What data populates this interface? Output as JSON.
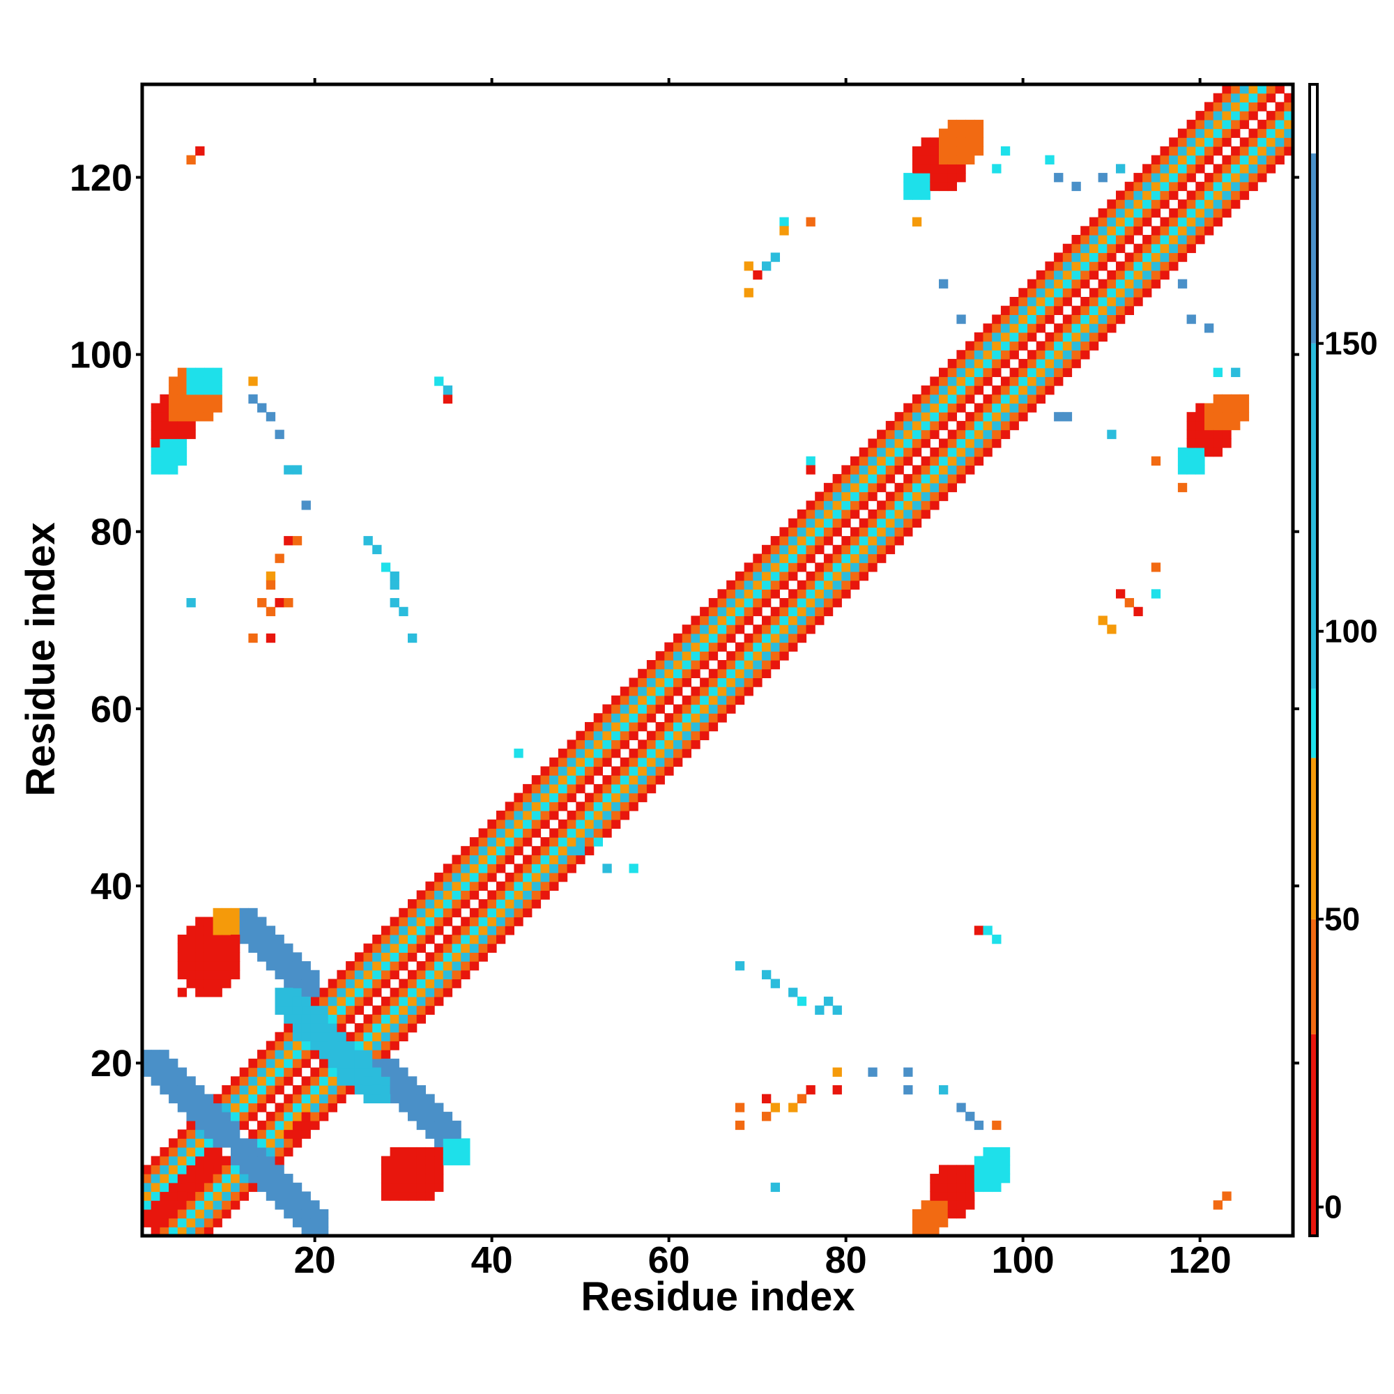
{
  "chart_data": {
    "type": "heatmap",
    "xlabel": "Residue index",
    "ylabel": "Residue index",
    "xlim": [
      0.5,
      130.5
    ],
    "ylim": [
      0.5,
      130.5
    ],
    "xticks": [
      20,
      40,
      60,
      80,
      100,
      120
    ],
    "yticks": [
      20,
      40,
      60,
      80,
      100,
      120
    ],
    "grid": false,
    "colorbar": {
      "range": [
        -5,
        195
      ],
      "ticks": [
        0,
        50,
        100,
        150
      ],
      "bands": [
        {
          "from": -5,
          "to": 30,
          "color": "#e8160d"
        },
        {
          "from": 30,
          "to": 50,
          "color": "#f26a12"
        },
        {
          "from": 50,
          "to": 78,
          "color": "#f59a0a"
        },
        {
          "from": 78,
          "to": 90,
          "color": "#1ee0ea"
        },
        {
          "from": 90,
          "to": 150,
          "color": "#2bbcdc"
        },
        {
          "from": 150,
          "to": 183,
          "color": "#4a90c8"
        },
        {
          "from": 183,
          "to": 195,
          "color": "#ffffff"
        }
      ]
    },
    "color_classes": {
      "R": {
        "value": 10,
        "color": "#e8160d"
      },
      "O": {
        "value": 40,
        "color": "#f26a12"
      },
      "Y": {
        "value": 65,
        "color": "#f59a0a"
      },
      "C": {
        "value": 85,
        "color": "#1ee0ea"
      },
      "T": {
        "value": 120,
        "color": "#2bbcdc"
      },
      "B": {
        "value": 165,
        "color": "#4a90c8"
      }
    },
    "diagonal_pattern": {
      "from": 1,
      "to": 130,
      "offsets": {
        "0": "",
        "1": "R",
        "2": "O",
        "3": "C",
        "4": "Y",
        "5": "T",
        "6": "O",
        "7": "R"
      }
    },
    "blocks": [
      {
        "x": [
          2,
          6
        ],
        "y": [
          90,
          95
        ],
        "band": 3,
        "class": "R"
      },
      {
        "x": [
          4,
          9
        ],
        "y": [
          93,
          98
        ],
        "band": 3,
        "class": "O"
      },
      {
        "x": [
          2,
          5
        ],
        "y": [
          87,
          90
        ],
        "band": 1,
        "class": "C"
      },
      {
        "x": [
          6,
          9
        ],
        "y": [
          96,
          98
        ],
        "band": 1,
        "class": "C"
      },
      {
        "x": [
          90,
          94
        ],
        "y": [
          3,
          8
        ],
        "band": 3,
        "class": "R"
      },
      {
        "x": [
          88,
          91
        ],
        "y": [
          1,
          4
        ],
        "band": 2,
        "class": "O"
      },
      {
        "x": [
          95,
          98
        ],
        "y": [
          6,
          10
        ],
        "band": 2,
        "class": "C"
      },
      {
        "x": [
          119,
          123
        ],
        "y": [
          89,
          94
        ],
        "band": 3,
        "class": "R"
      },
      {
        "x": [
          121,
          125
        ],
        "y": [
          92,
          95
        ],
        "band": 2,
        "class": "O"
      },
      {
        "x": [
          118,
          120
        ],
        "y": [
          87,
          89
        ],
        "band": 1,
        "class": "C"
      },
      {
        "x": [
          88,
          93
        ],
        "y": [
          119,
          124
        ],
        "band": 3,
        "class": "R"
      },
      {
        "x": [
          91,
          95
        ],
        "y": [
          122,
          126
        ],
        "band": 2,
        "class": "O"
      },
      {
        "x": [
          87,
          89
        ],
        "y": [
          118,
          120
        ],
        "band": 1,
        "class": "C"
      },
      {
        "x": [
          1,
          11
        ],
        "y": [
          11,
          21
        ],
        "band": 2,
        "class": "B",
        "anti": true
      },
      {
        "x": [
          11,
          21
        ],
        "y": [
          1,
          11
        ],
        "band": 2,
        "class": "B",
        "anti": true
      },
      {
        "x": [
          11,
          20
        ],
        "y": [
          28,
          37
        ],
        "band": 2,
        "class": "B",
        "anti": true
      },
      {
        "x": [
          27,
          36
        ],
        "y": [
          11,
          20
        ],
        "band": 2,
        "class": "B",
        "anti": true
      },
      {
        "x": [
          16,
          24
        ],
        "y": [
          20,
          28
        ],
        "band": 2,
        "class": "T",
        "anti": true
      },
      {
        "x": [
          21,
          28
        ],
        "y": [
          16,
          23
        ],
        "band": 2,
        "class": "T",
        "anti": true
      },
      {
        "x": [
          1,
          9
        ],
        "y": [
          2,
          10
        ],
        "band": 1,
        "class": "R",
        "para": true
      },
      {
        "x": [
          12,
          19
        ],
        "y": [
          12,
          19
        ],
        "band": 1,
        "class": "R",
        "para": true,
        "shift": -6
      },
      {
        "x": [
          5,
          11
        ],
        "y": [
          28,
          36
        ],
        "band": 0,
        "class": "R"
      },
      {
        "x": [
          28,
          34
        ],
        "y": [
          5,
          10
        ],
        "band": 0,
        "class": "R"
      },
      {
        "x": [
          9,
          11
        ],
        "y": [
          35,
          37
        ],
        "band": 0,
        "class": "Y"
      },
      {
        "x": [
          35,
          37
        ],
        "y": [
          9,
          11
        ],
        "band": 0,
        "class": "C"
      }
    ],
    "points": [
      [
        6,
        122,
        "O"
      ],
      [
        7,
        123,
        "R"
      ],
      [
        13,
        97,
        "Y"
      ],
      [
        13,
        95,
        "B"
      ],
      [
        14,
        94,
        "B"
      ],
      [
        15,
        93,
        "B"
      ],
      [
        16,
        91,
        "B"
      ],
      [
        17,
        87,
        "T"
      ],
      [
        18,
        87,
        "T"
      ],
      [
        19,
        83,
        "B"
      ],
      [
        17,
        79,
        "R"
      ],
      [
        18,
        79,
        "O"
      ],
      [
        16,
        77,
        "O"
      ],
      [
        15,
        75,
        "Y"
      ],
      [
        15,
        74,
        "O"
      ],
      [
        14,
        72,
        "O"
      ],
      [
        15,
        71,
        "O"
      ],
      [
        16,
        72,
        "R"
      ],
      [
        17,
        72,
        "O"
      ],
      [
        13,
        68,
        "O"
      ],
      [
        15,
        68,
        "R"
      ],
      [
        6,
        72,
        "T"
      ],
      [
        26,
        79,
        "T"
      ],
      [
        27,
        78,
        "T"
      ],
      [
        28,
        76,
        "C"
      ],
      [
        29,
        75,
        "T"
      ],
      [
        29,
        74,
        "T"
      ],
      [
        29,
        72,
        "T"
      ],
      [
        30,
        71,
        "T"
      ],
      [
        31,
        68,
        "T"
      ],
      [
        34,
        97,
        "C"
      ],
      [
        35,
        95,
        "R"
      ],
      [
        35,
        96,
        "T"
      ],
      [
        43,
        55,
        "C"
      ],
      [
        53,
        42,
        "T"
      ],
      [
        56,
        42,
        "C"
      ],
      [
        50,
        44,
        "T"
      ],
      [
        52,
        45,
        "C"
      ],
      [
        69,
        110,
        "Y"
      ],
      [
        70,
        109,
        "R"
      ],
      [
        71,
        110,
        "T"
      ],
      [
        72,
        111,
        "T"
      ],
      [
        69,
        107,
        "Y"
      ],
      [
        73,
        115,
        "C"
      ],
      [
        73,
        114,
        "Y"
      ],
      [
        76,
        115,
        "O"
      ],
      [
        76,
        88,
        "C"
      ],
      [
        76,
        87,
        "R"
      ],
      [
        88,
        115,
        "Y"
      ],
      [
        91,
        108,
        "B"
      ],
      [
        93,
        104,
        "B"
      ],
      [
        98,
        123,
        "C"
      ],
      [
        97,
        121,
        "C"
      ],
      [
        103,
        122,
        "C"
      ],
      [
        104,
        120,
        "B"
      ],
      [
        106,
        119,
        "B"
      ],
      [
        109,
        120,
        "B"
      ],
      [
        111,
        121,
        "T"
      ],
      [
        104,
        93,
        "B"
      ],
      [
        105,
        93,
        "B"
      ],
      [
        110,
        91,
        "T"
      ],
      [
        118,
        108,
        "B"
      ],
      [
        119,
        104,
        "B"
      ],
      [
        121,
        103,
        "B"
      ],
      [
        122,
        98,
        "C"
      ],
      [
        124,
        98,
        "T"
      ],
      [
        109,
        70,
        "Y"
      ],
      [
        110,
        69,
        "Y"
      ],
      [
        111,
        73,
        "R"
      ],
      [
        112,
        72,
        "O"
      ],
      [
        113,
        71,
        "R"
      ],
      [
        115,
        73,
        "C"
      ],
      [
        115,
        76,
        "O"
      ],
      [
        118,
        85,
        "O"
      ],
      [
        115,
        88,
        "O"
      ],
      [
        68,
        31,
        "T"
      ],
      [
        71,
        30,
        "T"
      ],
      [
        72,
        29,
        "T"
      ],
      [
        74,
        28,
        "T"
      ],
      [
        75,
        27,
        "C"
      ],
      [
        77,
        26,
        "T"
      ],
      [
        78,
        27,
        "T"
      ],
      [
        79,
        26,
        "T"
      ],
      [
        68,
        15,
        "O"
      ],
      [
        68,
        13,
        "O"
      ],
      [
        71,
        16,
        "R"
      ],
      [
        71,
        14,
        "O"
      ],
      [
        72,
        15,
        "Y"
      ],
      [
        74,
        15,
        "Y"
      ],
      [
        75,
        16,
        "O"
      ],
      [
        76,
        17,
        "R"
      ],
      [
        79,
        17,
        "R"
      ],
      [
        79,
        19,
        "Y"
      ],
      [
        83,
        19,
        "B"
      ],
      [
        87,
        19,
        "B"
      ],
      [
        87,
        17,
        "B"
      ],
      [
        91,
        17,
        "T"
      ],
      [
        93,
        15,
        "B"
      ],
      [
        94,
        14,
        "B"
      ],
      [
        95,
        13,
        "B"
      ],
      [
        97,
        13,
        "O"
      ],
      [
        95,
        35,
        "R"
      ],
      [
        96,
        35,
        "C"
      ],
      [
        97,
        34,
        "C"
      ],
      [
        72,
        6,
        "T"
      ],
      [
        122,
        4,
        "O"
      ],
      [
        123,
        5,
        "O"
      ]
    ]
  }
}
